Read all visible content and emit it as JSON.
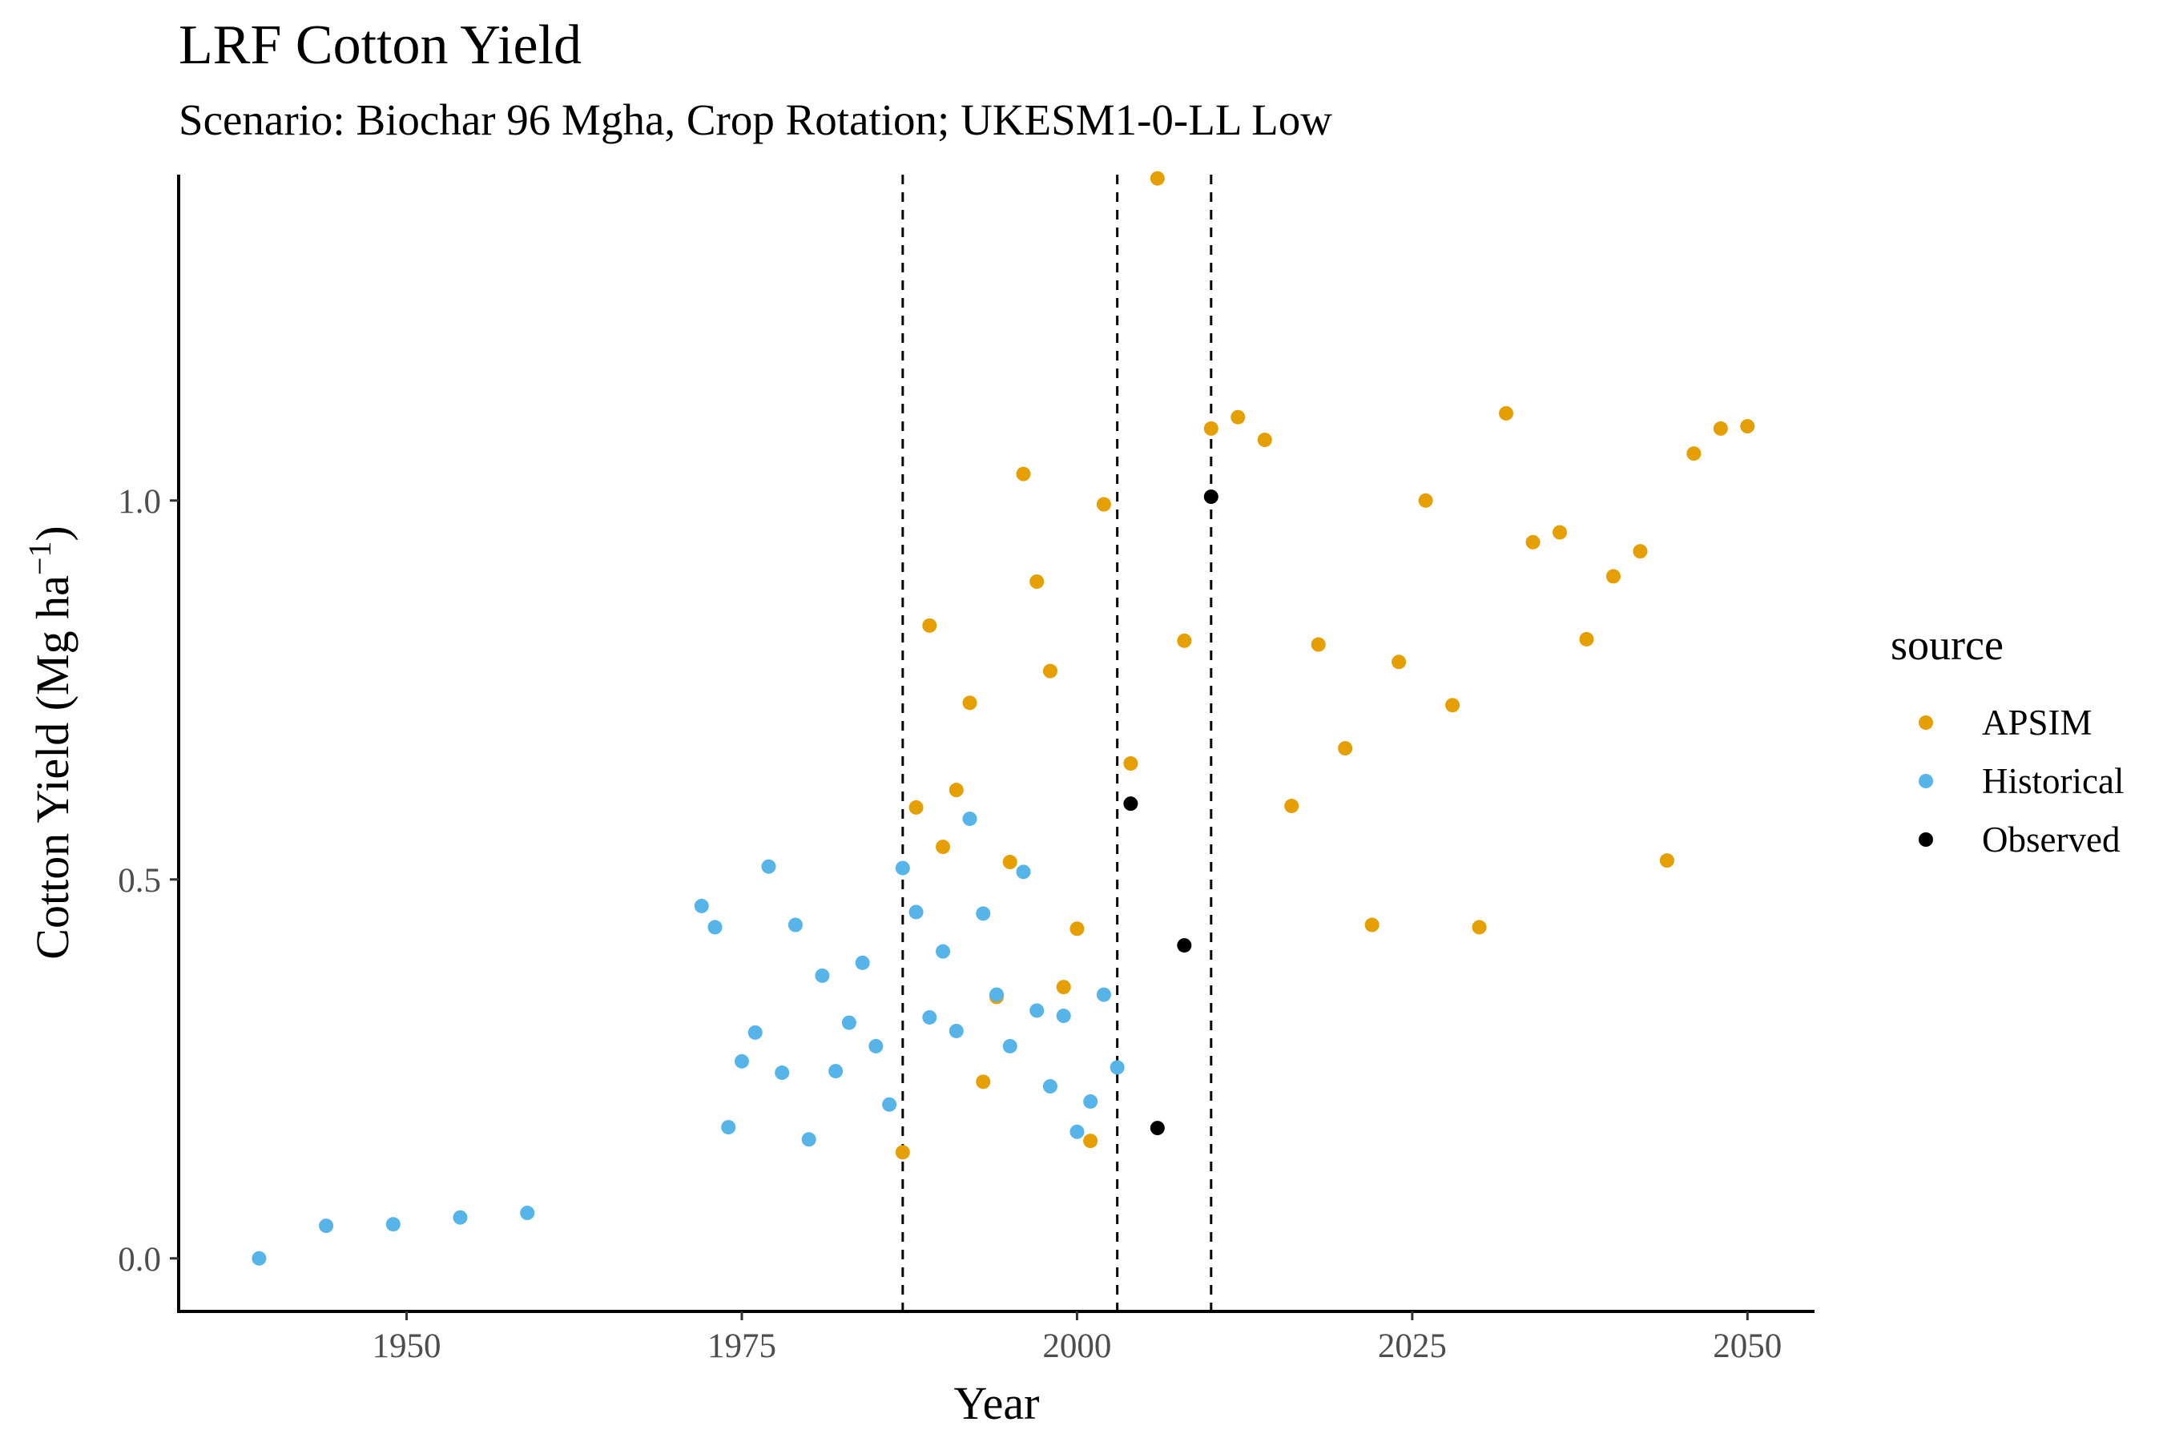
{
  "chart_data": {
    "type": "scatter",
    "title": "LRF Cotton Yield",
    "subtitle": "Scenario: Biochar 96 Mgha, Crop Rotation; UKESM1-0-LL Low",
    "xlabel": "Year",
    "ylabel": "Cotton Yield (Mg ha",
    "ylabel_sup": "−1",
    "ylabel_close": ")",
    "xlim": [
      1933,
      2055
    ],
    "ylim": [
      -0.07,
      1.43
    ],
    "x_ticks": [
      1950,
      1975,
      2000,
      2025,
      2050
    ],
    "y_ticks": [
      0.0,
      0.5,
      1.0
    ],
    "y_tick_labels": [
      "0.0",
      "0.5",
      "1.0"
    ],
    "vlines": [
      1987,
      2003,
      2010
    ],
    "grid": false,
    "legend": {
      "title": "source",
      "position": "right"
    },
    "series": [
      {
        "name": "APSIM",
        "color": "#E69F00",
        "points": [
          [
            1987,
            0.14
          ],
          [
            1988,
            0.595
          ],
          [
            1989,
            0.835
          ],
          [
            1990,
            0.543
          ],
          [
            1991,
            0.618
          ],
          [
            1992,
            0.733
          ],
          [
            1993,
            0.233
          ],
          [
            1994,
            0.345
          ],
          [
            1995,
            0.523
          ],
          [
            1996,
            1.035
          ],
          [
            1997,
            0.893
          ],
          [
            1998,
            0.775
          ],
          [
            1999,
            0.358
          ],
          [
            2000,
            0.435
          ],
          [
            2001,
            0.155
          ],
          [
            2002,
            0.995
          ],
          [
            2004,
            0.653
          ],
          [
            2006,
            1.425
          ],
          [
            2008,
            0.815
          ],
          [
            2010,
            1.095
          ],
          [
            2012,
            1.11
          ],
          [
            2014,
            1.08
          ],
          [
            2016,
            0.597
          ],
          [
            2018,
            0.81
          ],
          [
            2020,
            0.673
          ],
          [
            2022,
            0.44
          ],
          [
            2024,
            0.787
          ],
          [
            2026,
            1.0
          ],
          [
            2028,
            0.73
          ],
          [
            2030,
            0.437
          ],
          [
            2032,
            1.115
          ],
          [
            2034,
            0.945
          ],
          [
            2036,
            0.958
          ],
          [
            2038,
            0.817
          ],
          [
            2040,
            0.9
          ],
          [
            2042,
            0.933
          ],
          [
            2044,
            0.525
          ],
          [
            2046,
            1.062
          ],
          [
            2048,
            1.095
          ],
          [
            2050,
            1.098
          ]
        ]
      },
      {
        "name": "Historical",
        "color": "#56B4E9",
        "points": [
          [
            1939,
            0.0
          ],
          [
            1944,
            0.043
          ],
          [
            1949,
            0.045
          ],
          [
            1954,
            0.054
          ],
          [
            1959,
            0.06
          ],
          [
            1972,
            0.465
          ],
          [
            1973,
            0.437
          ],
          [
            1974,
            0.173
          ],
          [
            1975,
            0.26
          ],
          [
            1976,
            0.298
          ],
          [
            1977,
            0.517
          ],
          [
            1978,
            0.245
          ],
          [
            1979,
            0.44
          ],
          [
            1980,
            0.157
          ],
          [
            1981,
            0.373
          ],
          [
            1982,
            0.247
          ],
          [
            1983,
            0.311
          ],
          [
            1984,
            0.39
          ],
          [
            1985,
            0.28
          ],
          [
            1986,
            0.203
          ],
          [
            1987,
            0.515
          ],
          [
            1988,
            0.457
          ],
          [
            1989,
            0.318
          ],
          [
            1990,
            0.405
          ],
          [
            1991,
            0.3
          ],
          [
            1992,
            0.58
          ],
          [
            1993,
            0.455
          ],
          [
            1994,
            0.348
          ],
          [
            1995,
            0.28
          ],
          [
            1996,
            0.51
          ],
          [
            1997,
            0.327
          ],
          [
            1998,
            0.227
          ],
          [
            1999,
            0.32
          ],
          [
            2000,
            0.167
          ],
          [
            2001,
            0.207
          ],
          [
            2002,
            0.348
          ],
          [
            2003,
            0.252
          ]
        ]
      },
      {
        "name": "Observed",
        "color": "#000000",
        "points": [
          [
            2004,
            0.6
          ],
          [
            2006,
            0.172
          ],
          [
            2008,
            0.413
          ],
          [
            2010,
            1.005
          ]
        ]
      }
    ]
  }
}
